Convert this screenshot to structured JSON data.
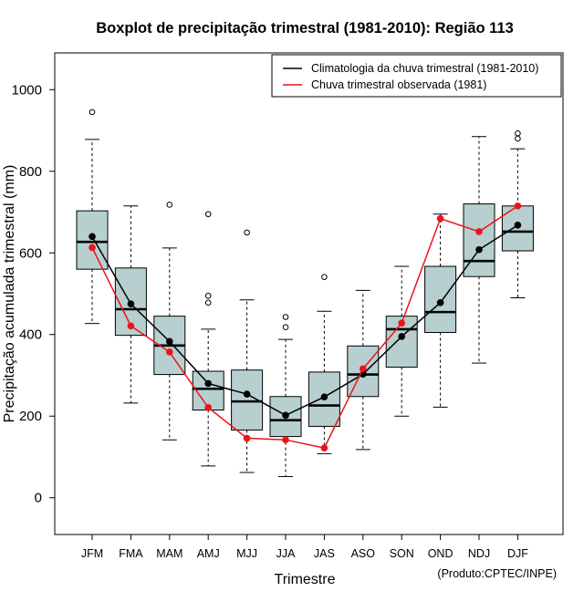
{
  "chart_data": {
    "type": "boxplot",
    "title": "Boxplot de precipitação trimestral (1981-2010): Região 113",
    "xlabel": "Trimestre",
    "ylabel": "Precipitação acumulada trimestral (mm)",
    "ylim": [
      -90,
      1090
    ],
    "yticks": [
      0,
      200,
      400,
      600,
      800,
      1000
    ],
    "categories": [
      "JFM",
      "FMA",
      "MAM",
      "AMJ",
      "MJJ",
      "JJA",
      "JAS",
      "ASO",
      "SON",
      "OND",
      "NDJ",
      "DJF"
    ],
    "boxes": [
      {
        "label": "JFM",
        "whisker_low": 427,
        "q1": 560,
        "median": 627,
        "q3": 703,
        "whisker_high": 878,
        "outliers": [
          945
        ]
      },
      {
        "label": "FMA",
        "whisker_low": 232,
        "q1": 398,
        "median": 462,
        "q3": 563,
        "whisker_high": 715,
        "outliers": []
      },
      {
        "label": "MAM",
        "whisker_low": 142,
        "q1": 302,
        "median": 373,
        "q3": 445,
        "whisker_high": 612,
        "outliers": [
          718
        ]
      },
      {
        "label": "AMJ",
        "whisker_low": 78,
        "q1": 215,
        "median": 267,
        "q3": 310,
        "whisker_high": 413,
        "outliers": [
          478,
          495,
          695
        ]
      },
      {
        "label": "MJJ",
        "whisker_low": 62,
        "q1": 166,
        "median": 236,
        "q3": 313,
        "whisker_high": 485,
        "outliers": [
          650
        ]
      },
      {
        "label": "JJA",
        "whisker_low": 52,
        "q1": 150,
        "median": 190,
        "q3": 248,
        "whisker_high": 388,
        "outliers": [
          418,
          443
        ]
      },
      {
        "label": "JAS",
        "whisker_low": 108,
        "q1": 175,
        "median": 226,
        "q3": 308,
        "whisker_high": 457,
        "outliers": [
          541
        ]
      },
      {
        "label": "ASO",
        "whisker_low": 118,
        "q1": 248,
        "median": 302,
        "q3": 372,
        "whisker_high": 508,
        "outliers": []
      },
      {
        "label": "SON",
        "whisker_low": 200,
        "q1": 320,
        "median": 413,
        "q3": 445,
        "whisker_high": 567,
        "outliers": []
      },
      {
        "label": "OND",
        "whisker_low": 222,
        "q1": 405,
        "median": 455,
        "q3": 567,
        "whisker_high": 695,
        "outliers": []
      },
      {
        "label": "NDJ",
        "whisker_low": 330,
        "q1": 542,
        "median": 580,
        "q3": 720,
        "whisker_high": 885,
        "outliers": []
      },
      {
        "label": "DJF",
        "whisker_low": 490,
        "q1": 605,
        "median": 652,
        "q3": 715,
        "whisker_high": 855,
        "outliers": [
          880,
          893
        ]
      }
    ],
    "series": [
      {
        "name": "Climatologia da chuva trimestral (1981-2010)",
        "color": "#000000",
        "values": [
          640,
          475,
          383,
          280,
          254,
          202,
          247,
          303,
          395,
          478,
          608,
          668
        ]
      },
      {
        "name": "Chuva trimestral observada (1981)",
        "color": "#e8141b",
        "values": [
          613,
          421,
          357,
          221,
          146,
          142,
          122,
          316,
          428,
          684,
          652,
          715
        ]
      }
    ],
    "legend_position": "top-right",
    "box_fill": "#b8cfcf",
    "source_note": "(Produto:CPTEC/INPE)"
  }
}
